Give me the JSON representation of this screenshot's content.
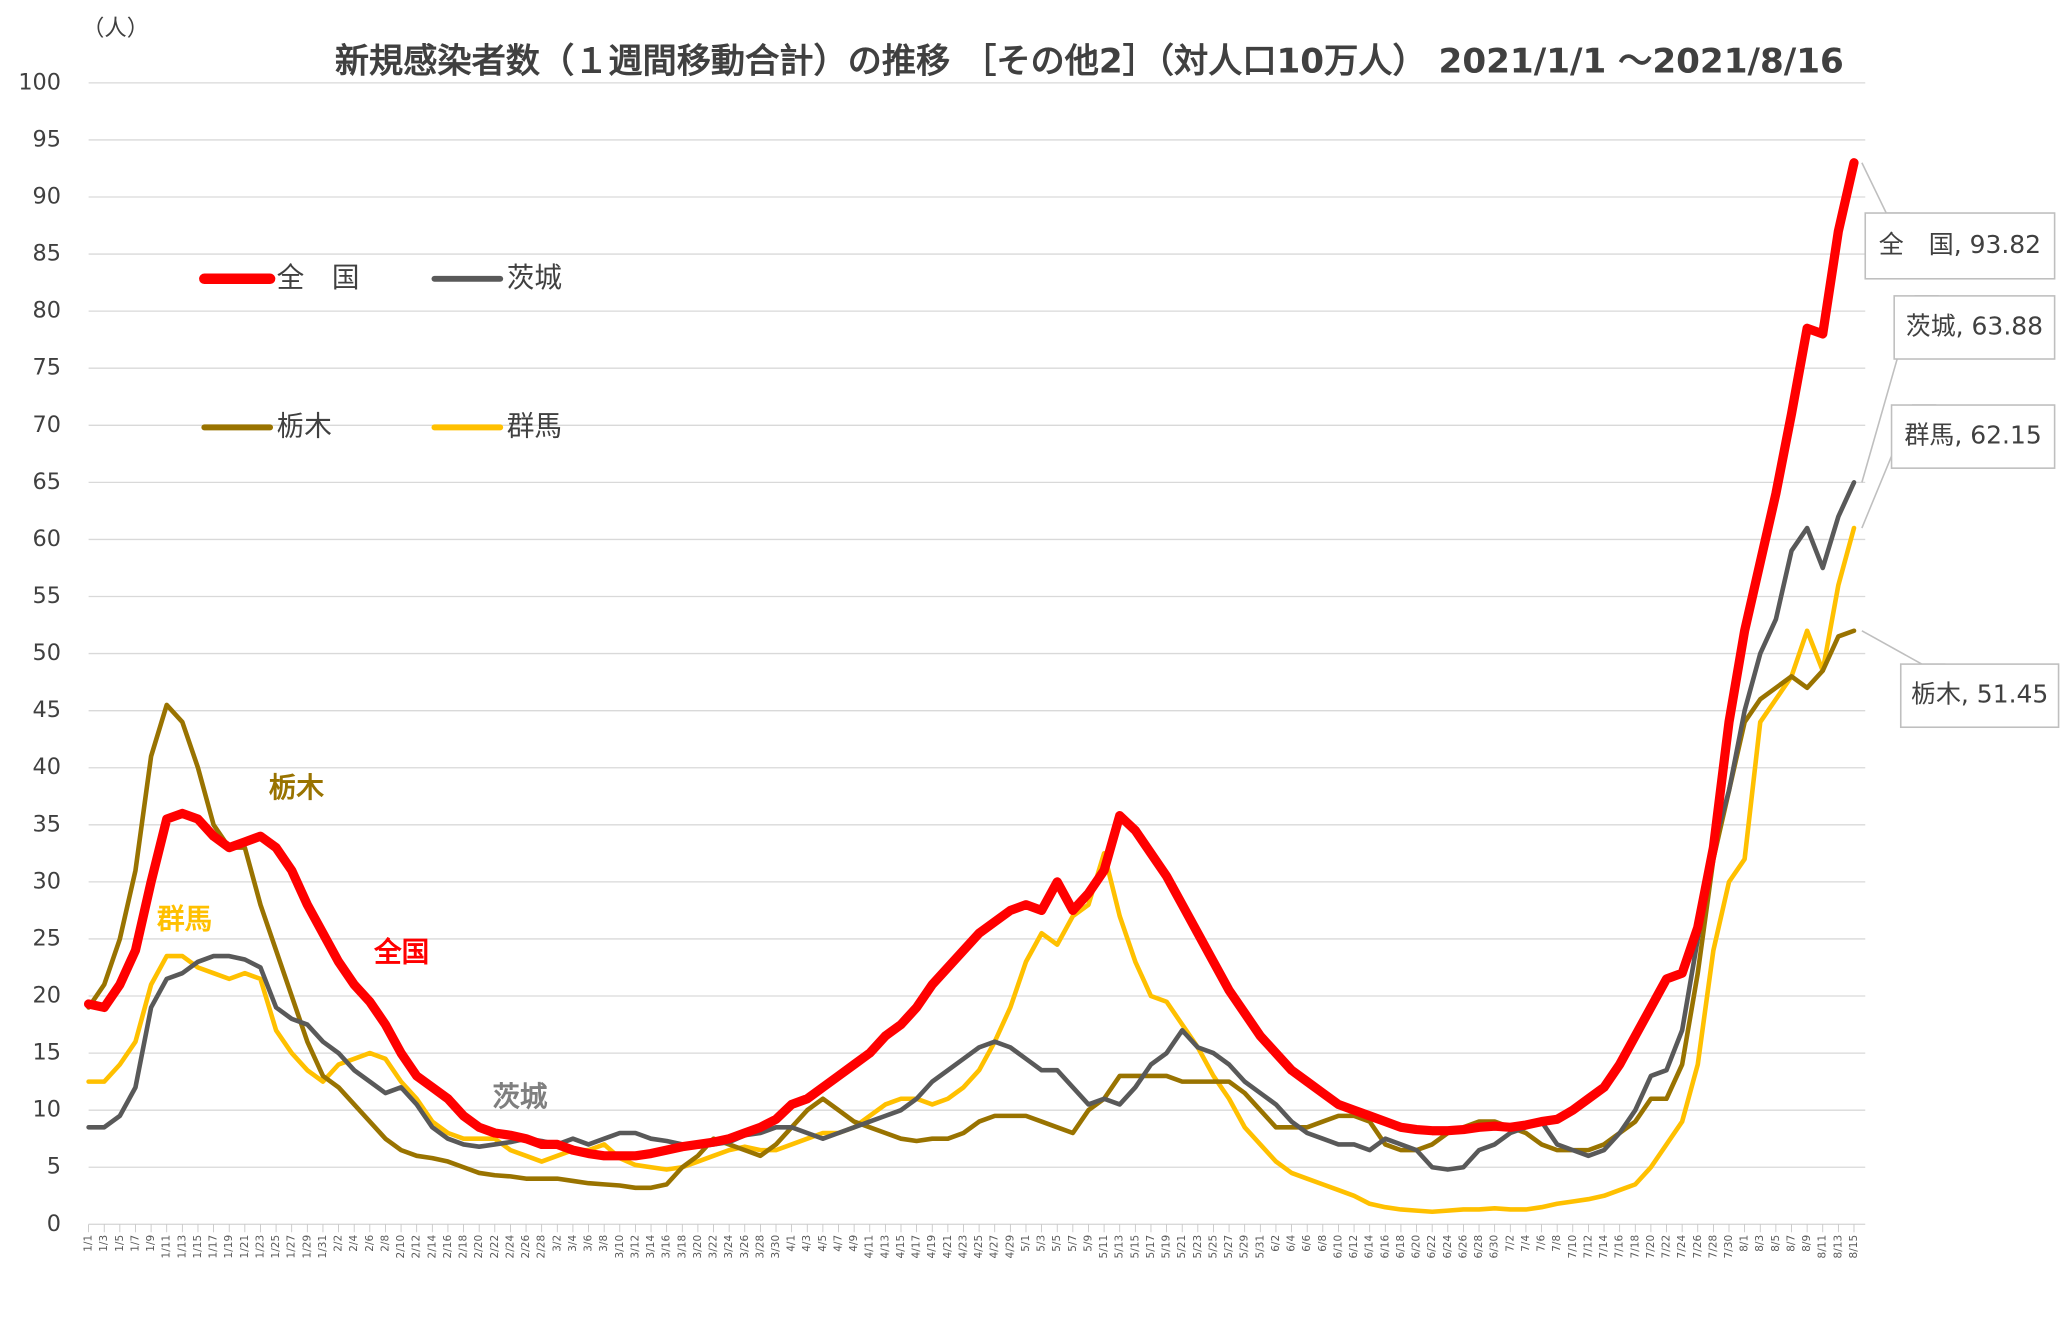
{
  "chart_data": {
    "type": "line",
    "title": "新規感染者数（１週間移動合計）の推移 ［その他2］（対人口10万人） 2021/1/1 ～2021/8/16",
    "y_unit": "（人）",
    "categories": [
      "1/1",
      "1/3",
      "1/5",
      "1/7",
      "1/9",
      "1/11",
      "1/13",
      "1/15",
      "1/17",
      "1/19",
      "1/21",
      "1/23",
      "1/25",
      "1/27",
      "1/29",
      "1/31",
      "2/2",
      "2/4",
      "2/6",
      "2/8",
      "2/10",
      "2/12",
      "2/14",
      "2/16",
      "2/18",
      "2/20",
      "2/22",
      "2/24",
      "2/26",
      "2/28",
      "3/2",
      "3/4",
      "3/6",
      "3/8",
      "3/10",
      "3/12",
      "3/14",
      "3/16",
      "3/18",
      "3/20",
      "3/22",
      "3/24",
      "3/26",
      "3/28",
      "3/30",
      "4/1",
      "4/3",
      "4/5",
      "4/7",
      "4/9",
      "4/11",
      "4/13",
      "4/15",
      "4/17",
      "4/19",
      "4/21",
      "4/23",
      "4/25",
      "4/27",
      "4/29",
      "5/1",
      "5/3",
      "5/5",
      "5/7",
      "5/9",
      "5/11",
      "5/13",
      "5/15",
      "5/17",
      "5/19",
      "5/21",
      "5/23",
      "5/25",
      "5/27",
      "5/29",
      "5/31",
      "6/2",
      "6/4",
      "6/6",
      "6/8",
      "6/10",
      "6/12",
      "6/14",
      "6/16",
      "6/18",
      "6/20",
      "6/22",
      "6/24",
      "6/26",
      "6/28",
      "6/30",
      "7/2",
      "7/4",
      "7/6",
      "7/8",
      "7/10",
      "7/12",
      "7/14",
      "7/16",
      "7/18",
      "7/20",
      "7/22",
      "7/24",
      "7/26",
      "7/28",
      "7/30",
      "8/1",
      "8/3",
      "8/5",
      "8/7",
      "8/9",
      "8/11",
      "8/13",
      "8/15"
    ],
    "series": [
      {
        "name": "全　国",
        "color": "#ff0000",
        "values": [
          19.3,
          19,
          21,
          24,
          30,
          35.5,
          36,
          35.5,
          34,
          33,
          33.5,
          34,
          33,
          31,
          28,
          25.5,
          23,
          21,
          19.5,
          17.5,
          15,
          13,
          12,
          11,
          9.5,
          8.5,
          8,
          7.8,
          7.5,
          7,
          7,
          6.5,
          6.2,
          6,
          6,
          6,
          6.2,
          6.5,
          6.8,
          7,
          7.2,
          7.5,
          8,
          8.5,
          9.2,
          10.5,
          11,
          12,
          13,
          14,
          15,
          16.5,
          17.5,
          19,
          21,
          22.5,
          24,
          25.5,
          26.5,
          27.5,
          28,
          27.5,
          30,
          27.5,
          29,
          31,
          35.8,
          34.5,
          32.5,
          30.5,
          28,
          25.5,
          23,
          20.5,
          18.5,
          16.5,
          15,
          13.5,
          12.5,
          11.5,
          10.5,
          10,
          9.5,
          9,
          8.5,
          8.3,
          8.2,
          8.2,
          8.3,
          8.5,
          8.6,
          8.5,
          8.7,
          9,
          9.2,
          10,
          11,
          12,
          14,
          16.5,
          19,
          21.5,
          22,
          26,
          33,
          44,
          52,
          58,
          64,
          71,
          78.5,
          78,
          87,
          93
        ]
      },
      {
        "name": "茨城",
        "color": "#595959",
        "values": [
          8.5,
          8.5,
          9.5,
          12,
          19,
          21.5,
          22,
          23,
          23.5,
          23.5,
          23.2,
          22.5,
          19,
          18,
          17.5,
          16,
          15,
          13.5,
          12.5,
          11.5,
          12,
          10.5,
          8.5,
          7.5,
          7,
          6.8,
          7,
          7.2,
          7.5,
          7.3,
          7,
          7.5,
          7,
          7.5,
          8,
          8,
          7.5,
          7.3,
          7,
          6.8,
          7,
          7.2,
          7.8,
          8,
          8.5,
          8.5,
          8,
          7.5,
          8,
          8.5,
          9,
          9.5,
          10,
          11,
          12.5,
          13.5,
          14.5,
          15.5,
          16,
          15.5,
          14.5,
          13.5,
          13.5,
          12,
          10.5,
          11,
          10.5,
          12,
          14,
          15,
          17,
          15.5,
          15,
          14,
          12.5,
          11.5,
          10.5,
          9,
          8,
          7.5,
          7,
          7,
          6.5,
          7.5,
          7,
          6.5,
          5,
          4.8,
          5,
          6.5,
          7,
          8,
          8.5,
          9,
          7,
          6.5,
          6,
          6.5,
          8,
          10,
          13,
          13.5,
          17,
          25,
          33,
          38,
          45,
          50,
          53,
          59,
          61,
          57.5,
          62,
          65
        ]
      },
      {
        "name": "栃木",
        "color": "#997300",
        "values": [
          19,
          21,
          25,
          31,
          41,
          45.5,
          44,
          40,
          35,
          33,
          33,
          28,
          24,
          20,
          16,
          13,
          12,
          10.5,
          9,
          7.5,
          6.5,
          6,
          5.8,
          5.5,
          5,
          4.5,
          4.3,
          4.2,
          4,
          4,
          4,
          3.8,
          3.6,
          3.5,
          3.4,
          3.2,
          3.2,
          3.5,
          5,
          6,
          7.5,
          7,
          6.5,
          6,
          7,
          8.5,
          10,
          11,
          10,
          9,
          8.5,
          8,
          7.5,
          7.3,
          7.5,
          7.5,
          8,
          9,
          9.5,
          9.5,
          9.5,
          9,
          8.5,
          8,
          10,
          11,
          13,
          13,
          13,
          13,
          12.5,
          12.5,
          12.5,
          12.5,
          11.5,
          10,
          8.5,
          8.5,
          8.5,
          9,
          9.5,
          9.5,
          9,
          7,
          6.5,
          6.5,
          7,
          8,
          8.5,
          9,
          9,
          8.5,
          8,
          7,
          6.5,
          6.5,
          6.5,
          7,
          8,
          9,
          11,
          11,
          14,
          22,
          32,
          38,
          44,
          46,
          47,
          48,
          47,
          48.5,
          51.5,
          52
        ]
      },
      {
        "name": "群馬",
        "color": "#ffc000",
        "values": [
          12.5,
          12.5,
          14,
          16,
          21,
          23.5,
          23.5,
          22.5,
          22,
          21.5,
          22,
          21.5,
          17,
          15,
          13.5,
          12.5,
          14,
          14.5,
          15,
          14.5,
          12.5,
          11,
          9,
          8,
          7.5,
          7.5,
          7.5,
          6.5,
          6,
          5.5,
          6,
          6.5,
          6.5,
          7,
          5.8,
          5.2,
          5,
          4.8,
          5,
          5.5,
          6,
          6.5,
          6.8,
          6.5,
          6.5,
          7,
          7.5,
          8,
          8,
          8.5,
          9.5,
          10.5,
          11,
          11,
          10.5,
          11,
          12,
          13.5,
          16,
          19,
          23,
          25.5,
          24.5,
          27,
          28,
          32.5,
          27,
          23,
          20,
          19.5,
          17.5,
          15.5,
          13,
          11,
          8.5,
          7,
          5.5,
          4.5,
          4,
          3.5,
          3,
          2.5,
          1.8,
          1.5,
          1.3,
          1.2,
          1.1,
          1.2,
          1.3,
          1.3,
          1.4,
          1.3,
          1.3,
          1.5,
          1.8,
          2,
          2.2,
          2.5,
          3,
          3.5,
          5,
          7,
          9,
          14,
          24,
          30,
          32,
          44,
          46,
          48,
          52,
          48.5,
          56,
          61
        ]
      }
    ],
    "labels": [
      "栃木",
      "群馬",
      "全国",
      "茨城"
    ],
    "callouts": [
      "全　国, 93.82",
      "茨城, 63.88",
      "群馬, 62.15",
      "栃木, 51.45"
    ],
    "ylim": [
      0,
      100
    ],
    "yticks": [
      0,
      5,
      10,
      15,
      20,
      25,
      30,
      35,
      40,
      45,
      50,
      55,
      60,
      65,
      70,
      75,
      80,
      85,
      90,
      95,
      100
    ],
    "grid": true
  }
}
